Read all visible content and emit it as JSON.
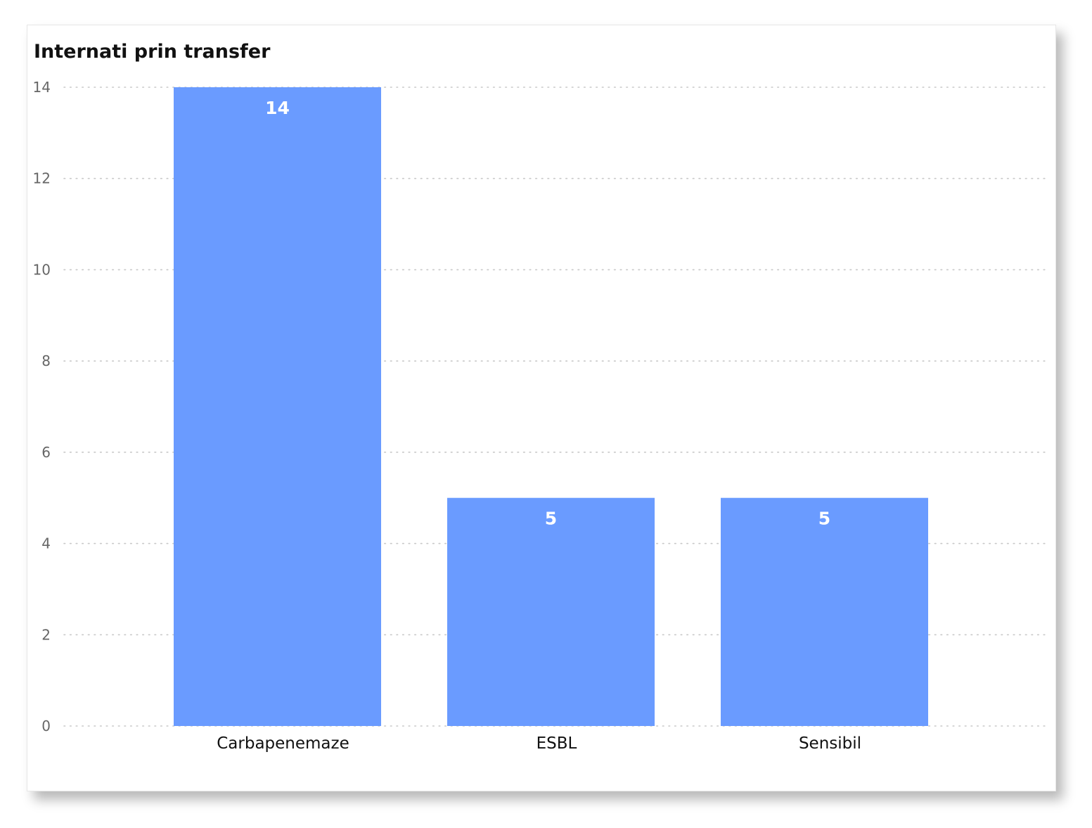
{
  "chart_data": {
    "type": "bar",
    "title": "Internati prin transfer",
    "xlabel": "",
    "ylabel": "",
    "categories": [
      "Carbapenemaze",
      "ESBL",
      "Sensibil"
    ],
    "values": [
      14,
      5,
      5
    ],
    "data_labels": [
      "14",
      "5",
      "5"
    ],
    "ylim": [
      0,
      14
    ],
    "yticks": [
      "0",
      "2",
      "4",
      "6",
      "8",
      "10",
      "12",
      "14"
    ],
    "grid": true,
    "legend": "none",
    "bar_color": "#6A9BFF",
    "grid_color": "#c8c8c8"
  }
}
